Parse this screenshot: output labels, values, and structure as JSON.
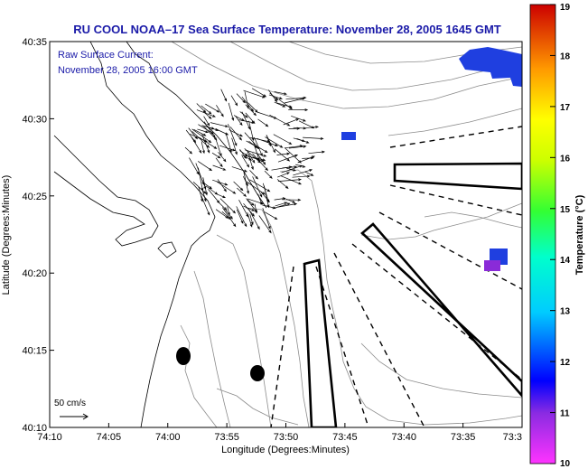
{
  "title": "RU COOL  NOAA–17  Sea Surface Temperature:  November 28, 2005 1645 GMT",
  "current_label": {
    "line1": "Raw Surface Current:",
    "line2": "November 28, 2005 16:00 GMT"
  },
  "scale_vector_label": "50 cm/s",
  "chart_data": {
    "type": "map",
    "title": "RU COOL  NOAA–17  Sea Surface Temperature:  November 28, 2005 1645 GMT",
    "xlabel": "Longitude (Degrees:Minutes)",
    "ylabel": "Latitude (Degrees:Minutes)",
    "x_ticks": [
      "74:10",
      "74:05",
      "74:00",
      "73:55",
      "73:50",
      "73:45",
      "73:40",
      "73:35",
      "73:3"
    ],
    "y_ticks": [
      "40:35",
      "40:30",
      "40:25",
      "40:20",
      "40:15",
      "40:10"
    ],
    "colorbar": {
      "label": "Temperature (°C)",
      "min": 10,
      "max": 19,
      "ticks": [
        "19",
        "18",
        "17",
        "16",
        "15",
        "14",
        "13",
        "12",
        "11",
        "10"
      ]
    }
  },
  "colors": {
    "title": "#1a1aa8",
    "sst_patch": "#1f3fe0",
    "sst_patch_purple": "#8a2bd8"
  }
}
